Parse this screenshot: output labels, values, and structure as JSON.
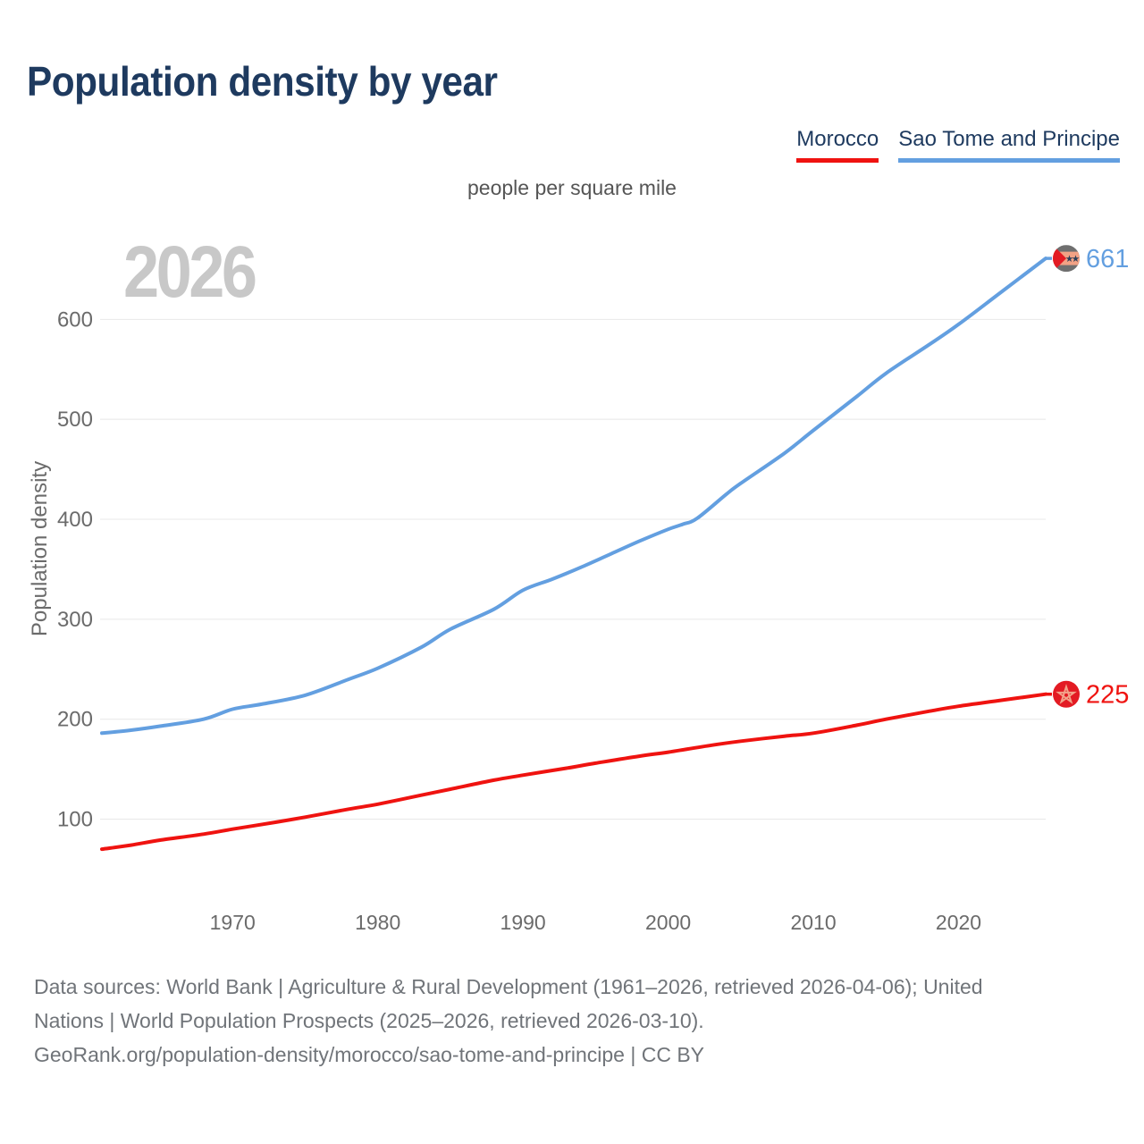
{
  "header": {
    "title": "Population density by year"
  },
  "legend": {
    "items": [
      {
        "label": "Morocco",
        "color": "#ef1310"
      },
      {
        "label": "Sao Tome and Principe",
        "color": "#639fe0"
      }
    ]
  },
  "subtitle": "people per square mile",
  "watermark": "2026",
  "colors": {
    "title": "#1e3a5f",
    "legend_text": "#1e3a5f",
    "axis_text": "#6b6b6b",
    "subtitle_text": "#555555",
    "grid": "#e8e8e8",
    "watermark": "#c8c8c8",
    "footer_text": "#707479"
  },
  "chart_data": {
    "type": "line",
    "title": "Population density by year",
    "unit_label": "people per square mile",
    "xlabel": "",
    "ylabel": "Population density",
    "xlim": [
      1961,
      2026
    ],
    "ylim": [
      20,
      700
    ],
    "x_ticks": [
      1970,
      1980,
      1990,
      2000,
      2010,
      2020
    ],
    "y_ticks": [
      100,
      200,
      300,
      400,
      500,
      600
    ],
    "grid": "horizontal-only",
    "legend_position": "top-right",
    "series": [
      {
        "name": "Morocco",
        "color": "#ef1310",
        "end_value": 225,
        "end_label": "225",
        "flag": "morocco-flag-icon",
        "flag_colors": {
          "bg": "#e31b23",
          "star": "#f2a48a"
        },
        "points": [
          [
            1961,
            70
          ],
          [
            1963,
            74
          ],
          [
            1965,
            79
          ],
          [
            1968,
            85
          ],
          [
            1970,
            90
          ],
          [
            1973,
            97
          ],
          [
            1975,
            102
          ],
          [
            1978,
            110
          ],
          [
            1980,
            115
          ],
          [
            1983,
            124
          ],
          [
            1985,
            130
          ],
          [
            1988,
            139
          ],
          [
            1990,
            144
          ],
          [
            1993,
            151
          ],
          [
            1995,
            156
          ],
          [
            1998,
            163
          ],
          [
            2000,
            167
          ],
          [
            2003,
            174
          ],
          [
            2005,
            178
          ],
          [
            2008,
            183
          ],
          [
            2010,
            186
          ],
          [
            2013,
            194
          ],
          [
            2015,
            200
          ],
          [
            2018,
            208
          ],
          [
            2020,
            213
          ],
          [
            2023,
            219
          ],
          [
            2026,
            225
          ]
        ]
      },
      {
        "name": "Sao Tome and Principe",
        "color": "#639fe0",
        "end_value": 661,
        "end_label": "661",
        "flag": "sao-tome-flag-icon",
        "flag_colors": {
          "bg": "#6f6f6f",
          "band": "#f2a285",
          "triangle": "#e31b23",
          "stars": "#2a3f5a"
        },
        "points": [
          [
            1961,
            186
          ],
          [
            1963,
            189
          ],
          [
            1965,
            193
          ],
          [
            1968,
            200
          ],
          [
            1970,
            210
          ],
          [
            1972,
            215
          ],
          [
            1975,
            224
          ],
          [
            1978,
            240
          ],
          [
            1980,
            251
          ],
          [
            1983,
            272
          ],
          [
            1985,
            290
          ],
          [
            1988,
            310
          ],
          [
            1990,
            329
          ],
          [
            1992,
            340
          ],
          [
            1994,
            352
          ],
          [
            1996,
            365
          ],
          [
            1998,
            378
          ],
          [
            2000,
            390
          ],
          [
            2001,
            395
          ],
          [
            2002,
            401
          ],
          [
            2004,
            425
          ],
          [
            2005,
            436
          ],
          [
            2008,
            466
          ],
          [
            2010,
            489
          ],
          [
            2013,
            523
          ],
          [
            2015,
            546
          ],
          [
            2018,
            575
          ],
          [
            2020,
            595
          ],
          [
            2023,
            628
          ],
          [
            2026,
            661
          ]
        ]
      }
    ]
  },
  "footer": {
    "lines": [
      "Data sources: World Bank | Agriculture & Rural Development (1961–2026, retrieved 2026-04-06); United",
      "Nations | World Population Prospects (2025–2026, retrieved 2026-03-10).",
      "GeoRank.org/population-density/morocco/sao-tome-and-principe | CC BY"
    ]
  }
}
